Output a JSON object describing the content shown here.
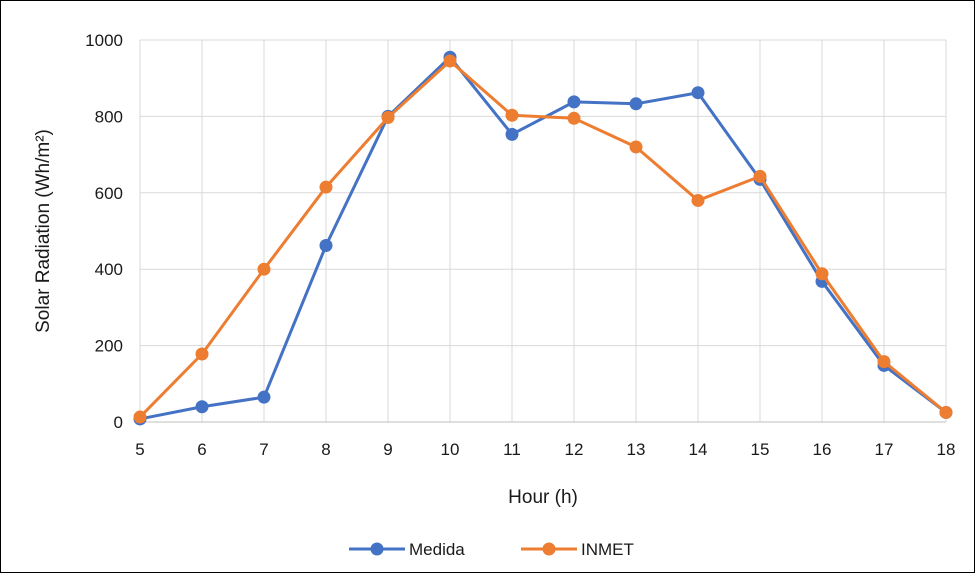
{
  "chart_data": {
    "type": "line",
    "title": "",
    "xlabel": "Hour (h)",
    "ylabel": "Solar Radiation (Wh/m²)",
    "x": [
      5,
      6,
      7,
      8,
      9,
      10,
      11,
      12,
      13,
      14,
      15,
      16,
      17,
      18
    ],
    "xlim": [
      5,
      18
    ],
    "ylim": [
      0,
      1000
    ],
    "y_ticks": [
      0,
      200,
      400,
      600,
      800,
      1000
    ],
    "grid": true,
    "legend_position": "bottom",
    "series": [
      {
        "name": "Medida",
        "color": "#4472C4",
        "values": [
          8,
          40,
          65,
          462,
          800,
          955,
          753,
          838,
          833,
          862,
          635,
          368,
          148,
          25
        ]
      },
      {
        "name": "INMET",
        "color": "#ED7D31",
        "values": [
          13,
          178,
          400,
          615,
          797,
          945,
          803,
          795,
          720,
          580,
          643,
          388,
          158,
          25
        ]
      }
    ]
  }
}
